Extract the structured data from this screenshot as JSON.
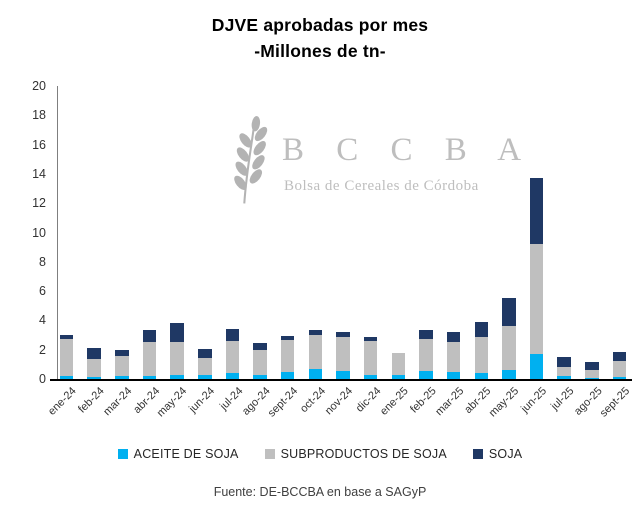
{
  "title": {
    "line1": "DJVE aprobadas por mes",
    "line2": "-Millones de tn-"
  },
  "watermark": {
    "acronym": "B C C B A",
    "subtitle": "Bolsa de Cereales de Córdoba",
    "icon": "wheat-branch-icon",
    "color": "#b3b3b3"
  },
  "footer": {
    "source": "Fuente: DE-BCCBA en base a SAGyP"
  },
  "chart_data": {
    "type": "bar",
    "stacked": true,
    "title": "DJVE aprobadas por mes -Millones de tn-",
    "xlabel": "",
    "ylabel": "",
    "ylim": [
      0,
      20
    ],
    "ytick_step": 2,
    "grid": false,
    "legend_position": "bottom",
    "categories": [
      "ene-24",
      "feb-24",
      "mar-24",
      "abr-24",
      "may-24",
      "jun-24",
      "jul-24",
      "ago-24",
      "sept-24",
      "oct-24",
      "nov-24",
      "dic-24",
      "ene-25",
      "feb-25",
      "mar-25",
      "abr-25",
      "may-25",
      "jun-25",
      "jul-25",
      "ago-25",
      "sept-25"
    ],
    "series": [
      {
        "name": "ACEITE DE SOJA",
        "color": "#00b0f0",
        "values": [
          0.2,
          0.15,
          0.2,
          0.2,
          0.3,
          0.25,
          0.4,
          0.25,
          0.45,
          0.65,
          0.55,
          0.3,
          0.3,
          0.55,
          0.45,
          0.4,
          0.6,
          1.7,
          0.2,
          0.1,
          0.15
        ]
      },
      {
        "name": "SUBPRODUCTOS DE SOJA",
        "color": "#bfbfbf",
        "values": [
          2.5,
          1.25,
          1.4,
          2.35,
          2.2,
          1.2,
          2.2,
          1.7,
          2.2,
          2.35,
          2.35,
          2.3,
          1.45,
          2.15,
          2.05,
          2.5,
          3.0,
          7.5,
          0.65,
          0.5,
          1.05
        ]
      },
      {
        "name": "SOJA",
        "color": "#1f3864",
        "values": [
          0.3,
          0.7,
          0.4,
          0.8,
          1.3,
          0.6,
          0.8,
          0.5,
          0.3,
          0.35,
          0.3,
          0.25,
          0.0,
          0.65,
          0.7,
          1.0,
          1.9,
          4.5,
          0.65,
          0.55,
          0.65
        ]
      }
    ]
  }
}
